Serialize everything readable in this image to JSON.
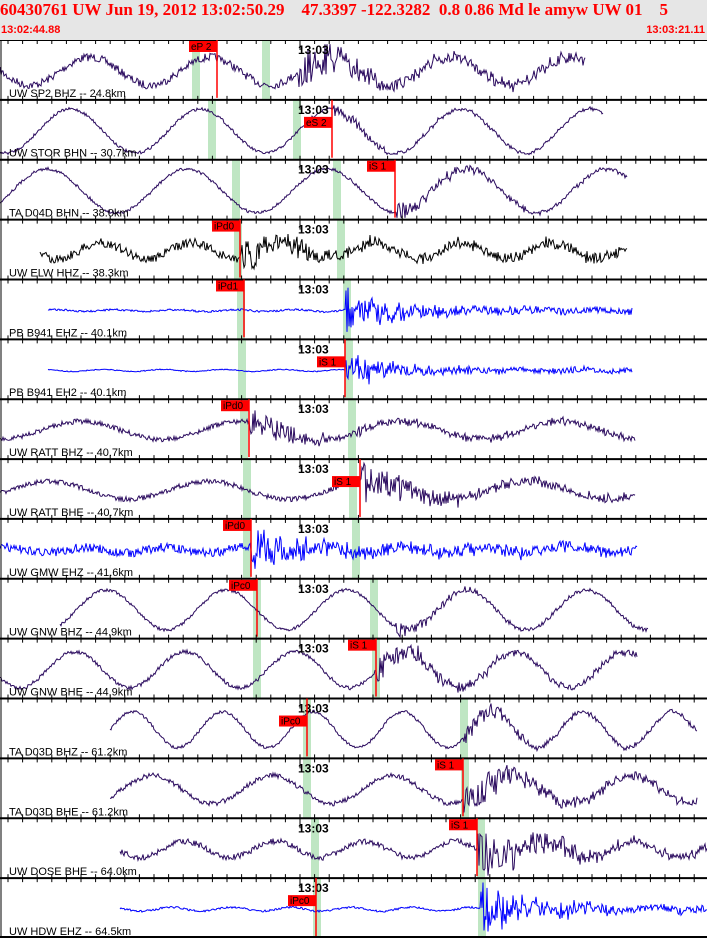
{
  "header": {
    "title": "60430761 UW Jun 19, 2012 13:02:50.29    47.3397 -122.3282  0.8 0.86 Md le amyw UW 01    5",
    "start_time": "13:02:44.88",
    "end_time": "13:03:21.11"
  },
  "tick_label": "13:03",
  "colors": {
    "pick": "#ff0000",
    "window": "#bfe6c3",
    "navy": "#2a0a5e",
    "black": "#000000",
    "blue": "#0000ff"
  },
  "channels": [
    {
      "label": "UW SP2 BHZ -- 24.8km",
      "pick": "eP 2",
      "trace_color": "navy"
    },
    {
      "label": "UW STOR BHN -- 30.7km",
      "pick": "eS 2",
      "trace_color": "navy"
    },
    {
      "label": "TA D04D BHN -- 38.0km",
      "pick": "iS 1",
      "trace_color": "navy"
    },
    {
      "label": "UW ELW HHZ -- 38.3km",
      "pick": "iPd0",
      "trace_color": "black"
    },
    {
      "label": "PB B941 EHZ -- 40.1km",
      "pick": "iPd1",
      "trace_color": "blue"
    },
    {
      "label": "PB B941 EH2 -- 40.1km",
      "pick": "iS 1",
      "trace_color": "blue"
    },
    {
      "label": "UW RATT BHZ -- 40.7km",
      "pick": "iPd0",
      "trace_color": "navy"
    },
    {
      "label": "UW RATT BHE -- 40.7km",
      "pick": "iS 1",
      "trace_color": "navy"
    },
    {
      "label": "UW GMW EHZ -- 41.6km",
      "pick": "iPd0",
      "trace_color": "blue"
    },
    {
      "label": "UW GNW BHZ -- 44.9km",
      "pick": "iPc0",
      "trace_color": "navy"
    },
    {
      "label": "UW GNW BHE -- 44.9km",
      "pick": "iS 1",
      "trace_color": "navy"
    },
    {
      "label": "TA D03D BHZ -- 61.2km",
      "pick": "iPc0",
      "trace_color": "navy"
    },
    {
      "label": "TA D03D BHE -- 61.2km",
      "pick": "iS 1",
      "trace_color": "navy"
    },
    {
      "label": "UW DOSE BHE -- 64.0km",
      "pick": "iS 1",
      "trace_color": "navy"
    },
    {
      "label": "UW HDW EHZ -- 64.5km",
      "pick": "iPc0",
      "trace_color": "blue"
    }
  ]
}
